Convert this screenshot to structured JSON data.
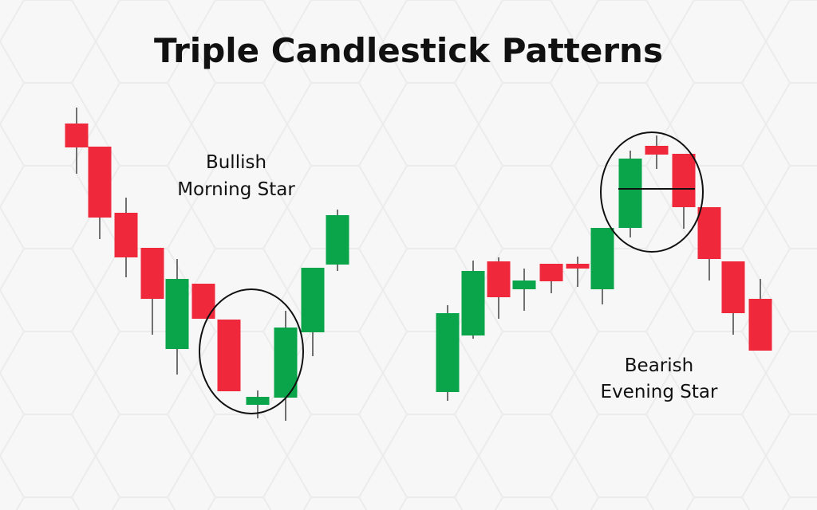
{
  "header": {
    "title": "Triple Candlestick Patterns"
  },
  "patterns": [
    {
      "label_lines": [
        "Bullish",
        "Morning Star"
      ]
    },
    {
      "label_lines": [
        "Bearish",
        "Evening Star"
      ]
    }
  ]
}
